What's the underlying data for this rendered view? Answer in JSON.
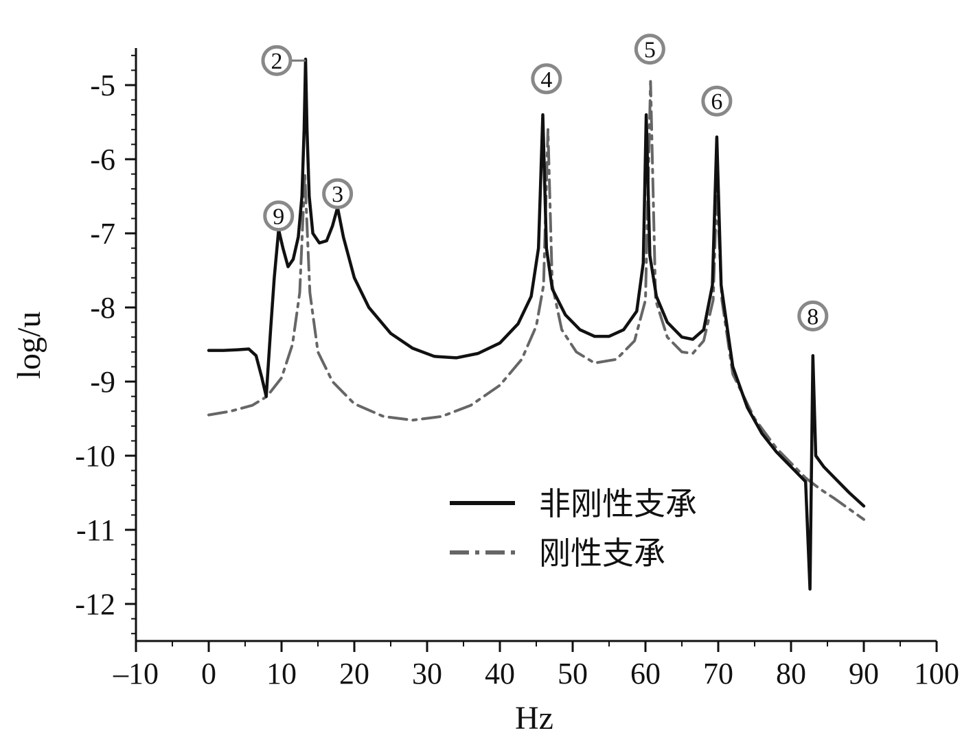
{
  "chart_data": {
    "type": "line",
    "title": "",
    "xlabel": "Hz",
    "ylabel": "log/u",
    "xlim": [
      -10,
      100
    ],
    "ylim": [
      -12.5,
      -4.5
    ],
    "x_ticks": [
      -10,
      0,
      10,
      20,
      30,
      40,
      50,
      60,
      70,
      80,
      90,
      100
    ],
    "x_tick_labels": [
      "–10",
      "0",
      "10",
      "20",
      "30",
      "40",
      "50",
      "60",
      "70",
      "80",
      "90",
      "100"
    ],
    "y_ticks": [
      -5,
      -6,
      -7,
      -8,
      -9,
      -10,
      -11,
      -12
    ],
    "y_tick_labels": [
      "-5",
      "-6",
      "-7",
      "-8",
      "-9",
      "-10",
      "-11",
      "-12"
    ],
    "grid": false,
    "legend_position": "center-right",
    "series": [
      {
        "name": "非刚性支承",
        "style": "solid",
        "color": "#111111",
        "points": [
          [
            0,
            -8.58
          ],
          [
            2,
            -8.58
          ],
          [
            4,
            -8.57
          ],
          [
            5.5,
            -8.56
          ],
          [
            6.5,
            -8.65
          ],
          [
            7.3,
            -8.95
          ],
          [
            7.9,
            -9.2
          ],
          [
            8.5,
            -8.3
          ],
          [
            9.0,
            -7.6
          ],
          [
            9.6,
            -6.95
          ],
          [
            10.2,
            -7.2
          ],
          [
            10.9,
            -7.45
          ],
          [
            11.6,
            -7.35
          ],
          [
            12.3,
            -7.05
          ],
          [
            12.8,
            -6.5
          ],
          [
            13.1,
            -5.6
          ],
          [
            13.3,
            -4.65
          ],
          [
            13.5,
            -5.6
          ],
          [
            13.8,
            -6.5
          ],
          [
            14.3,
            -7.0
          ],
          [
            15.2,
            -7.13
          ],
          [
            16.2,
            -7.1
          ],
          [
            17.0,
            -6.9
          ],
          [
            17.7,
            -6.65
          ],
          [
            18.5,
            -7.05
          ],
          [
            20,
            -7.6
          ],
          [
            22,
            -8.0
          ],
          [
            25,
            -8.35
          ],
          [
            28,
            -8.55
          ],
          [
            31,
            -8.66
          ],
          [
            34,
            -8.68
          ],
          [
            37,
            -8.62
          ],
          [
            40,
            -8.48
          ],
          [
            42.5,
            -8.22
          ],
          [
            44.3,
            -7.85
          ],
          [
            45.3,
            -7.2
          ],
          [
            45.9,
            -5.4
          ],
          [
            46.4,
            -7.2
          ],
          [
            47.2,
            -7.75
          ],
          [
            49,
            -8.1
          ],
          [
            51,
            -8.3
          ],
          [
            53,
            -8.39
          ],
          [
            55,
            -8.39
          ],
          [
            57,
            -8.3
          ],
          [
            58.8,
            -8.05
          ],
          [
            59.7,
            -7.4
          ],
          [
            60.1,
            -5.4
          ],
          [
            60.6,
            -7.3
          ],
          [
            61.5,
            -7.85
          ],
          [
            63,
            -8.2
          ],
          [
            65,
            -8.4
          ],
          [
            66.5,
            -8.43
          ],
          [
            68,
            -8.3
          ],
          [
            69.2,
            -7.7
          ],
          [
            69.8,
            -5.7
          ],
          [
            70.4,
            -7.7
          ],
          [
            72,
            -8.8
          ],
          [
            74,
            -9.35
          ],
          [
            76,
            -9.7
          ],
          [
            78,
            -9.95
          ],
          [
            80,
            -10.15
          ],
          [
            82,
            -10.35
          ],
          [
            82.6,
            -11.8
          ],
          [
            83.0,
            -8.65
          ],
          [
            83.4,
            -10.0
          ],
          [
            84.5,
            -10.15
          ],
          [
            86,
            -10.3
          ],
          [
            88,
            -10.5
          ],
          [
            90,
            -10.68
          ]
        ]
      },
      {
        "name": "刚性支承",
        "style": "dashdot",
        "color": "#666666",
        "points": [
          [
            0,
            -9.45
          ],
          [
            3,
            -9.4
          ],
          [
            6,
            -9.32
          ],
          [
            8,
            -9.2
          ],
          [
            10,
            -8.95
          ],
          [
            11.5,
            -8.5
          ],
          [
            12.5,
            -7.8
          ],
          [
            13.2,
            -6.2
          ],
          [
            13.9,
            -7.8
          ],
          [
            15,
            -8.6
          ],
          [
            17,
            -9.0
          ],
          [
            20,
            -9.3
          ],
          [
            24,
            -9.47
          ],
          [
            28,
            -9.52
          ],
          [
            32,
            -9.47
          ],
          [
            36,
            -9.32
          ],
          [
            40,
            -9.05
          ],
          [
            43,
            -8.7
          ],
          [
            45,
            -8.25
          ],
          [
            46,
            -7.7
          ],
          [
            46.6,
            -5.6
          ],
          [
            47.2,
            -7.7
          ],
          [
            48.5,
            -8.3
          ],
          [
            50.5,
            -8.6
          ],
          [
            53,
            -8.75
          ],
          [
            56,
            -8.7
          ],
          [
            58.5,
            -8.45
          ],
          [
            60,
            -7.9
          ],
          [
            60.7,
            -4.95
          ],
          [
            61.4,
            -7.9
          ],
          [
            63,
            -8.4
          ],
          [
            65,
            -8.6
          ],
          [
            66.5,
            -8.62
          ],
          [
            68,
            -8.45
          ],
          [
            69.3,
            -7.9
          ],
          [
            69.8,
            -6.4
          ],
          [
            70.5,
            -7.9
          ],
          [
            72,
            -8.9
          ],
          [
            75,
            -9.5
          ],
          [
            78,
            -9.9
          ],
          [
            80,
            -10.1
          ],
          [
            82,
            -10.3
          ],
          [
            84,
            -10.45
          ],
          [
            86,
            -10.58
          ],
          [
            88,
            -10.72
          ],
          [
            90,
            -10.86
          ]
        ]
      }
    ],
    "peaks": [
      {
        "label": "2",
        "x": 13.3,
        "y": -4.65
      },
      {
        "label": "9",
        "x": 9.6,
        "y": -6.95
      },
      {
        "label": "3",
        "x": 17.7,
        "y": -6.65
      },
      {
        "label": "4",
        "x": 46.4,
        "y": -5.1
      },
      {
        "label": "5",
        "x": 60.6,
        "y": -4.7
      },
      {
        "label": "6",
        "x": 69.8,
        "y": -5.4
      },
      {
        "label": "8",
        "x": 83.0,
        "y": -8.3
      }
    ]
  }
}
